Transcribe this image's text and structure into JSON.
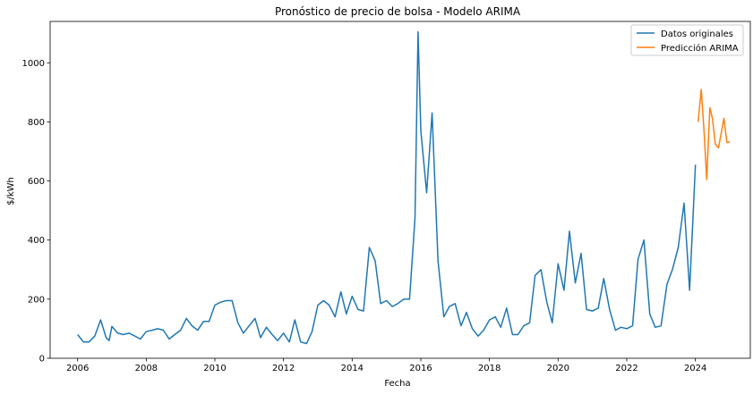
{
  "chart_data": {
    "type": "line",
    "title": "Pronóstico de precio de bolsa - Modelo ARIMA",
    "xlabel": "Fecha",
    "ylabel": "$/kWh",
    "xlim": [
      2005.2,
      2025.6
    ],
    "ylim": [
      0,
      1140
    ],
    "x_ticks": [
      2006,
      2008,
      2010,
      2012,
      2014,
      2016,
      2018,
      2020,
      2022,
      2024
    ],
    "y_ticks": [
      0,
      200,
      400,
      600,
      800,
      1000
    ],
    "grid": false,
    "legend_position": "top-right",
    "series": [
      {
        "name": "Datos originales",
        "color": "#1f77b4",
        "x": [
          2006.0,
          2006.17,
          2006.33,
          2006.5,
          2006.67,
          2006.83,
          2006.92,
          2007.0,
          2007.17,
          2007.33,
          2007.5,
          2007.67,
          2007.83,
          2008.0,
          2008.17,
          2008.33,
          2008.5,
          2008.67,
          2008.83,
          2009.0,
          2009.17,
          2009.33,
          2009.5,
          2009.67,
          2009.83,
          2010.0,
          2010.17,
          2010.33,
          2010.5,
          2010.67,
          2010.83,
          2011.0,
          2011.17,
          2011.33,
          2011.5,
          2011.67,
          2011.83,
          2012.0,
          2012.17,
          2012.33,
          2012.5,
          2012.67,
          2012.83,
          2013.0,
          2013.17,
          2013.33,
          2013.5,
          2013.67,
          2013.83,
          2014.0,
          2014.17,
          2014.33,
          2014.5,
          2014.67,
          2014.83,
          2015.0,
          2015.17,
          2015.33,
          2015.5,
          2015.67,
          2015.83,
          2015.92,
          2016.0,
          2016.17,
          2016.33,
          2016.5,
          2016.67,
          2016.83,
          2017.0,
          2017.17,
          2017.33,
          2017.5,
          2017.67,
          2017.83,
          2018.0,
          2018.17,
          2018.33,
          2018.5,
          2018.67,
          2018.83,
          2019.0,
          2019.17,
          2019.33,
          2019.5,
          2019.67,
          2019.83,
          2020.0,
          2020.17,
          2020.33,
          2020.5,
          2020.67,
          2020.83,
          2021.0,
          2021.17,
          2021.33,
          2021.5,
          2021.67,
          2021.83,
          2022.0,
          2022.17,
          2022.33,
          2022.5,
          2022.67,
          2022.83,
          2023.0,
          2023.17,
          2023.33,
          2023.5,
          2023.67,
          2023.83,
          2024.0
        ],
        "y": [
          80,
          55,
          55,
          75,
          130,
          70,
          60,
          108,
          85,
          80,
          85,
          75,
          65,
          90,
          95,
          100,
          95,
          65,
          80,
          95,
          135,
          110,
          95,
          125,
          125,
          180,
          190,
          195,
          195,
          120,
          85,
          110,
          135,
          70,
          105,
          80,
          60,
          85,
          55,
          130,
          55,
          50,
          90,
          180,
          195,
          180,
          140,
          225,
          150,
          210,
          165,
          160,
          375,
          330,
          185,
          195,
          175,
          185,
          200,
          200,
          475,
          1105,
          770,
          560,
          830,
          330,
          140,
          175,
          185,
          110,
          155,
          100,
          75,
          95,
          130,
          140,
          105,
          170,
          80,
          80,
          110,
          120,
          280,
          300,
          190,
          120,
          320,
          230,
          430,
          255,
          355,
          165,
          160,
          170,
          270,
          165,
          95,
          105,
          100,
          110,
          335,
          400,
          150,
          105,
          110,
          250,
          300,
          375,
          525,
          230,
          655
        ]
      },
      {
        "name": "Predicción ARIMA",
        "color": "#ff7f0e",
        "x": [
          2024.08,
          2024.17,
          2024.25,
          2024.33,
          2024.42,
          2024.5,
          2024.58,
          2024.67,
          2024.75,
          2024.83,
          2024.92,
          2025.0
        ],
        "y": [
          800,
          910,
          770,
          605,
          848,
          810,
          725,
          712,
          760,
          812,
          730,
          732
        ]
      }
    ]
  }
}
